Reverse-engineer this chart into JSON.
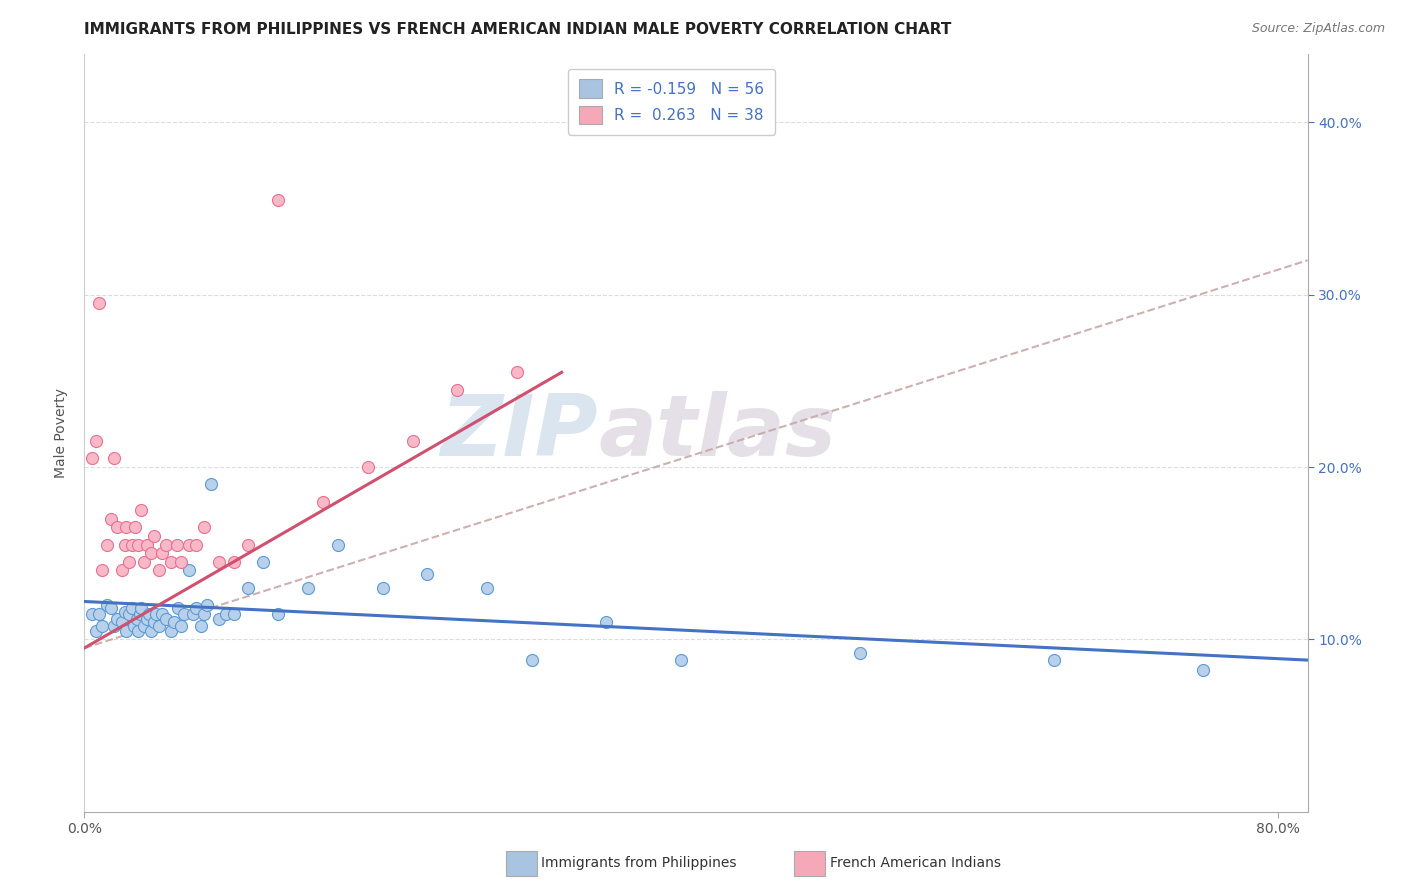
{
  "title": "IMMIGRANTS FROM PHILIPPINES VS FRENCH AMERICAN INDIAN MALE POVERTY CORRELATION CHART",
  "source": "Source: ZipAtlas.com",
  "ylabel": "Male Poverty",
  "legend_label1": "R = -0.159   N = 56",
  "legend_label2": "R =  0.263   N = 38",
  "legend_color1": "#a8c4e0",
  "legend_color2": "#f4a8b8",
  "scatter_color1": "#b8d0ea",
  "scatter_color2": "#f8b8c8",
  "edge_color1": "#5b9bd5",
  "edge_color2": "#e87090",
  "line_color1": "#4472c4",
  "line_color2": "#d05070",
  "dash_color": "#c8a8a8",
  "xlabel_label1": "Immigrants from Philippines",
  "xlabel_label2": "French American Indians",
  "xlim": [
    0.0,
    0.82
  ],
  "ylim": [
    0.0,
    0.44
  ],
  "blue_x": [
    0.005,
    0.008,
    0.01,
    0.012,
    0.015,
    0.018,
    0.02,
    0.022,
    0.025,
    0.027,
    0.028,
    0.03,
    0.032,
    0.033,
    0.035,
    0.036,
    0.037,
    0.038,
    0.04,
    0.042,
    0.043,
    0.045,
    0.047,
    0.048,
    0.05,
    0.052,
    0.055,
    0.058,
    0.06,
    0.063,
    0.065,
    0.067,
    0.07,
    0.073,
    0.075,
    0.078,
    0.08,
    0.082,
    0.085,
    0.09,
    0.095,
    0.1,
    0.11,
    0.12,
    0.13,
    0.15,
    0.17,
    0.2,
    0.23,
    0.27,
    0.3,
    0.35,
    0.4,
    0.52,
    0.65,
    0.75
  ],
  "blue_y": [
    0.115,
    0.105,
    0.115,
    0.108,
    0.12,
    0.118,
    0.108,
    0.112,
    0.11,
    0.116,
    0.105,
    0.115,
    0.118,
    0.108,
    0.112,
    0.105,
    0.115,
    0.118,
    0.108,
    0.112,
    0.115,
    0.105,
    0.11,
    0.115,
    0.108,
    0.115,
    0.112,
    0.105,
    0.11,
    0.118,
    0.108,
    0.115,
    0.14,
    0.115,
    0.118,
    0.108,
    0.115,
    0.12,
    0.19,
    0.112,
    0.115,
    0.115,
    0.13,
    0.145,
    0.115,
    0.13,
    0.155,
    0.13,
    0.138,
    0.13,
    0.088,
    0.11,
    0.088,
    0.092,
    0.088,
    0.082
  ],
  "pink_x": [
    0.005,
    0.008,
    0.01,
    0.012,
    0.015,
    0.018,
    0.02,
    0.022,
    0.025,
    0.027,
    0.028,
    0.03,
    0.032,
    0.034,
    0.036,
    0.038,
    0.04,
    0.042,
    0.045,
    0.047,
    0.05,
    0.052,
    0.055,
    0.058,
    0.062,
    0.065,
    0.07,
    0.075,
    0.08,
    0.09,
    0.1,
    0.11,
    0.13,
    0.16,
    0.19,
    0.22,
    0.25,
    0.29
  ],
  "pink_y": [
    0.205,
    0.215,
    0.295,
    0.14,
    0.155,
    0.17,
    0.205,
    0.165,
    0.14,
    0.155,
    0.165,
    0.145,
    0.155,
    0.165,
    0.155,
    0.175,
    0.145,
    0.155,
    0.15,
    0.16,
    0.14,
    0.15,
    0.155,
    0.145,
    0.155,
    0.145,
    0.155,
    0.155,
    0.165,
    0.145,
    0.145,
    0.155,
    0.355,
    0.18,
    0.2,
    0.215,
    0.245,
    0.255
  ],
  "blue_trend": [
    0.0,
    0.82,
    0.122,
    0.088
  ],
  "pink_trend": [
    0.0,
    0.32,
    0.095,
    0.255
  ],
  "dash_trend": [
    0.0,
    0.82,
    0.095,
    0.32
  ],
  "title_fontsize": 11,
  "tick_fontsize": 10,
  "ylabel_fontsize": 10
}
